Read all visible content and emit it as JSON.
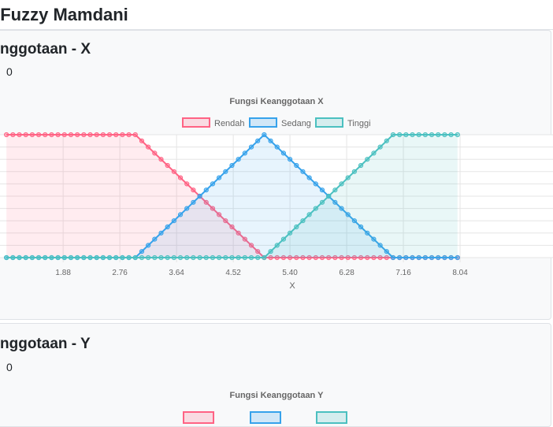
{
  "page": {
    "title": "i Fuzzy Mamdani"
  },
  "cards": [
    {
      "heading": "nggotaan - X",
      "sub": "0"
    },
    {
      "heading": "nggotaan - Y",
      "sub": "0"
    }
  ],
  "colors": {
    "rendah": "#ff6384",
    "sedang": "#36a2eb",
    "tinggi": "#4bc0c0",
    "grid": "#e5e5e5",
    "text": "#666666"
  },
  "chart_data": [
    {
      "type": "line",
      "title": "Fungsi Keanggotaan X",
      "xlabel": "X",
      "ylabel": "",
      "x_ticks": [
        "1.88",
        "2.76",
        "3.64",
        "4.52",
        "5.40",
        "6.28",
        "7.16",
        "8.04"
      ],
      "xlim": [
        1.0,
        8.0
      ],
      "ylim": [
        0,
        1
      ],
      "grid": true,
      "fill": true,
      "legend": "top",
      "series": [
        {
          "name": "Rendah",
          "color": "#ff6384",
          "points": [
            [
              1.0,
              1
            ],
            [
              3.0,
              1
            ],
            [
              5.0,
              0
            ],
            [
              8.0,
              0
            ]
          ]
        },
        {
          "name": "Sedang",
          "color": "#36a2eb",
          "points": [
            [
              1.0,
              0
            ],
            [
              3.0,
              0
            ],
            [
              5.0,
              1
            ],
            [
              7.0,
              0
            ],
            [
              8.0,
              0
            ]
          ]
        },
        {
          "name": "Tinggi",
          "color": "#4bc0c0",
          "points": [
            [
              1.0,
              0
            ],
            [
              5.0,
              0
            ],
            [
              7.0,
              1
            ],
            [
              8.0,
              1
            ]
          ]
        }
      ]
    },
    {
      "type": "line",
      "title": "Fungsi Keanggotaan Y",
      "legend": "top",
      "series": [
        {
          "color": "#ff6384"
        },
        {
          "color": "#36a2eb"
        },
        {
          "color": "#4bc0c0"
        }
      ]
    }
  ]
}
